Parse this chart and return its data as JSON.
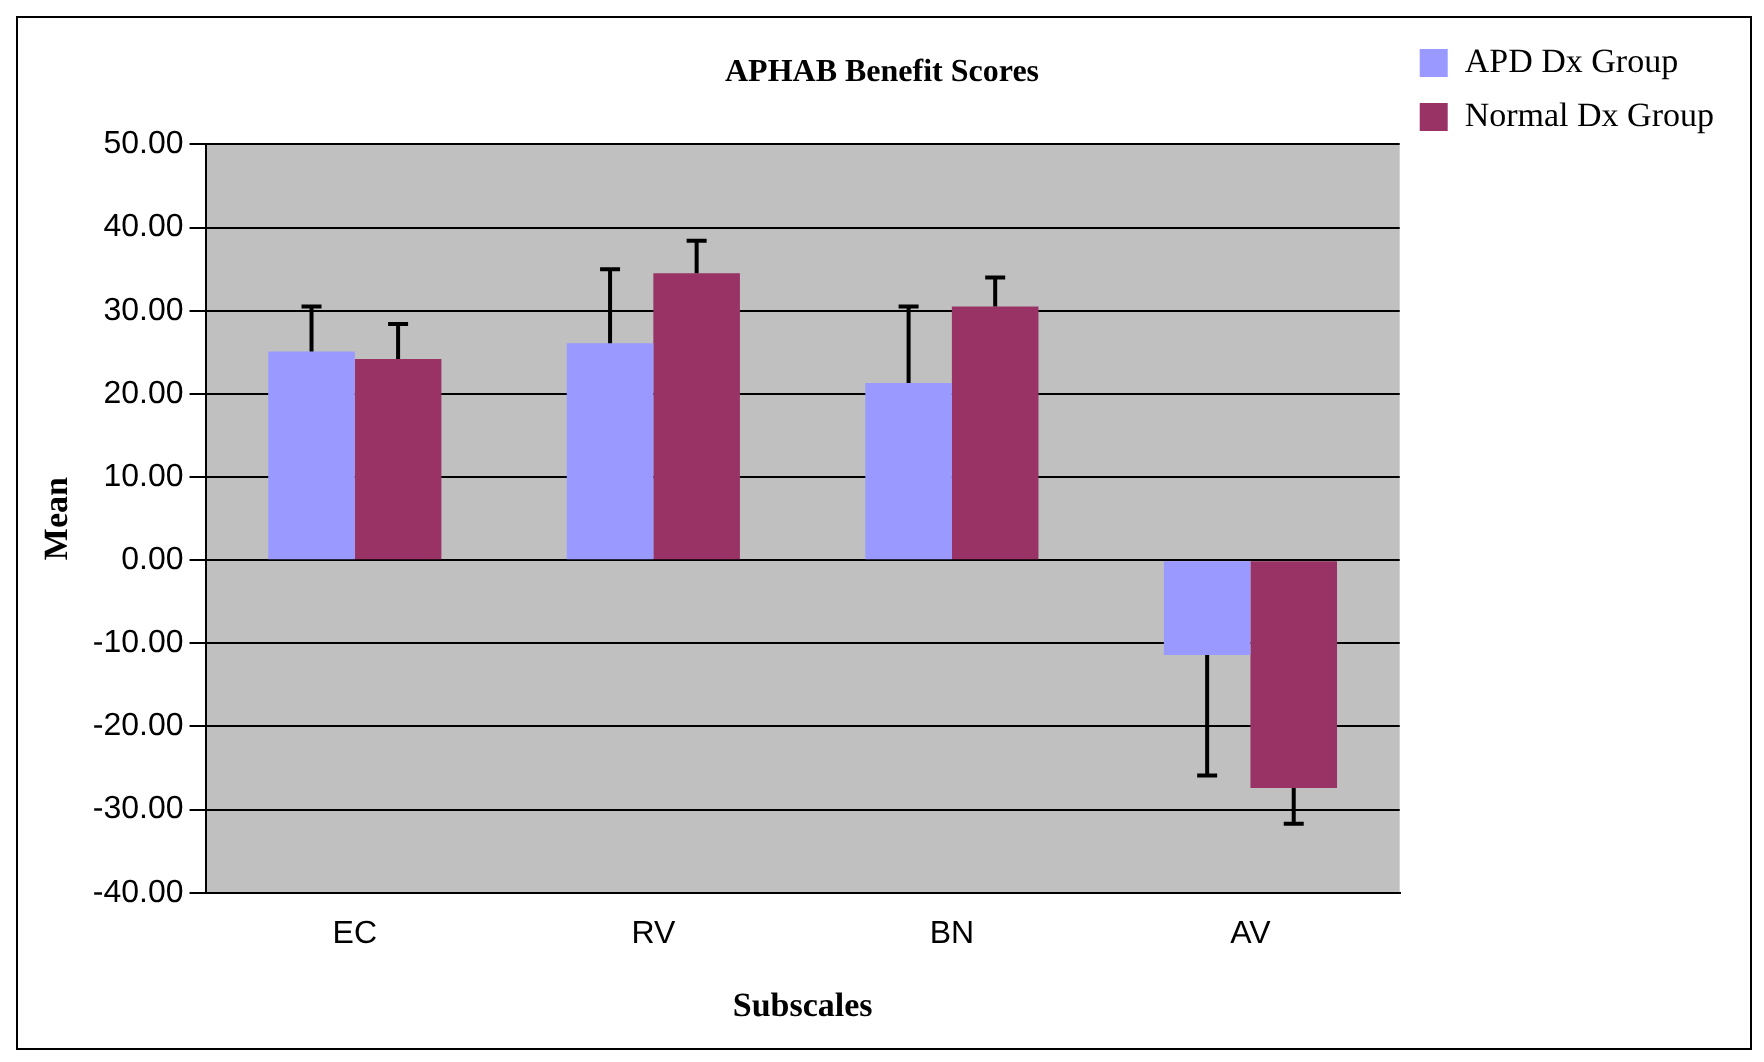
{
  "chart_data": {
    "type": "bar",
    "title": "APHAB Benefit Scores",
    "xlabel": "Subscales",
    "ylabel": "Mean",
    "categories": [
      "EC",
      "RV",
      "BN",
      "AV"
    ],
    "series": [
      {
        "name": "APD Dx Group",
        "color": "#9999ff",
        "values": [
          25.1,
          26.1,
          21.3,
          -11.4
        ],
        "errors": [
          [
            25.1,
            30.5
          ],
          [
            26.1,
            35.0
          ],
          [
            21.3,
            30.5
          ],
          [
            -25.9,
            -11.4
          ]
        ]
      },
      {
        "name": "Normal Dx Group",
        "color": "#993366",
        "values": [
          24.2,
          34.5,
          30.5,
          -27.4
        ],
        "errors": [
          [
            24.2,
            28.4
          ],
          [
            34.5,
            38.4
          ],
          [
            30.5,
            34.0
          ],
          [
            -31.7,
            -27.4
          ]
        ]
      }
    ],
    "ylim": [
      -40,
      50
    ],
    "yticks": [
      {
        "value": -40,
        "label": "-40.00"
      },
      {
        "value": -30,
        "label": "-30.00"
      },
      {
        "value": -20,
        "label": "-20.00"
      },
      {
        "value": -10,
        "label": "-10.00"
      },
      {
        "value": 0,
        "label": "0.00"
      },
      {
        "value": 10,
        "label": "10.00"
      },
      {
        "value": 20,
        "label": "20.00"
      },
      {
        "value": 30,
        "label": "30.00"
      },
      {
        "value": 40,
        "label": "40.00"
      },
      {
        "value": 50,
        "label": "50.00"
      }
    ],
    "grid": "y",
    "legend": "right"
  }
}
